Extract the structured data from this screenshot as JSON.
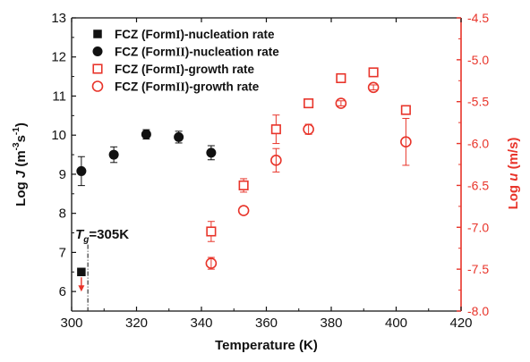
{
  "chart_data": {
    "type": "scatter",
    "xlabel": "Temperature (K)",
    "ylabel": "Log J (m⁻³s⁻¹)",
    "ylabel_parts": {
      "pre": "Log ",
      "var": "J",
      "unit": " (m",
      "sup1": "-3",
      "mid": "s",
      "sup2": "-1",
      "close": ")"
    },
    "y2label": "Log u (m/s)",
    "y2label_parts": {
      "pre": "Log ",
      "var": "u",
      "unit": " (m/s)"
    },
    "xlim": [
      300,
      420
    ],
    "ylim": [
      5.5,
      13
    ],
    "y2lim": [
      -8.0,
      -4.5
    ],
    "x_ticks": [
      "300",
      "320",
      "340",
      "360",
      "380",
      "400",
      "420"
    ],
    "y_ticks": [
      "6",
      "7",
      "8",
      "9",
      "10",
      "11",
      "12",
      "13"
    ],
    "y2_ticks": [
      "-8.0",
      "-7.5",
      "-7.0",
      "-6.5",
      "-6.0",
      "-5.5",
      "-5.0",
      "-4.5"
    ],
    "annotation": {
      "text_var": "T",
      "text_sub": "g",
      "text_rest": "=305K",
      "x": 305
    },
    "legend_position": "top-left",
    "colors": {
      "black": "#111111",
      "red": "#e8342a"
    },
    "series": [
      {
        "name": "FCZ (FormI)-nucleation rate",
        "legend_pre": "FCZ (Form",
        "legend_roman": "I",
        "legend_post": ")-nucleation rate",
        "marker": "filled-square",
        "color": "#111111",
        "axis": "left",
        "points": [
          {
            "x": 303,
            "y": 6.5,
            "arrow_down": true
          }
        ]
      },
      {
        "name": "FCZ (FormII)-nucleation rate",
        "legend_pre": "FCZ (Form",
        "legend_roman": "II",
        "legend_post": ")-nucleation rate",
        "marker": "filled-circle",
        "color": "#111111",
        "axis": "left",
        "points": [
          {
            "x": 303,
            "y": 9.08,
            "err": 0.37
          },
          {
            "x": 313,
            "y": 9.5,
            "err": 0.2
          },
          {
            "x": 323,
            "y": 10.02,
            "err": 0.12
          },
          {
            "x": 333,
            "y": 9.95,
            "err": 0.15
          },
          {
            "x": 343,
            "y": 9.55,
            "err": 0.18
          }
        ]
      },
      {
        "name": "FCZ (FormI)-growth rate",
        "legend_pre": "FCZ (Form",
        "legend_roman": "I",
        "legend_post": ")-growth rate",
        "marker": "open-square",
        "color": "#e8342a",
        "axis": "right",
        "points": [
          {
            "x": 343,
            "y": -7.05,
            "err": 0.12
          },
          {
            "x": 353,
            "y": -6.5,
            "err": 0.08
          },
          {
            "x": 363,
            "y": -5.83,
            "err": 0.17
          },
          {
            "x": 373,
            "y": -5.52,
            "err": 0.04
          },
          {
            "x": 383,
            "y": -5.22,
            "err": 0.04
          },
          {
            "x": 393,
            "y": -5.15,
            "err": 0.03
          },
          {
            "x": 403,
            "y": -5.6,
            "err": 0.05
          }
        ]
      },
      {
        "name": "FCZ (FormII)-growth rate",
        "legend_pre": "FCZ (Form",
        "legend_roman": "II",
        "legend_post": ")-growth rate",
        "marker": "open-circle",
        "color": "#e8342a",
        "axis": "right",
        "points": [
          {
            "x": 343,
            "y": -7.43,
            "err": 0.07
          },
          {
            "x": 353,
            "y": -6.8,
            "err": 0.0
          },
          {
            "x": 363,
            "y": -6.2,
            "err": 0.14
          },
          {
            "x": 373,
            "y": -5.83,
            "err": 0.06
          },
          {
            "x": 383,
            "y": -5.52,
            "err": 0.03
          },
          {
            "x": 393,
            "y": -5.33,
            "err": 0.03
          },
          {
            "x": 403,
            "y": -5.98,
            "err": 0.28
          }
        ]
      }
    ]
  }
}
